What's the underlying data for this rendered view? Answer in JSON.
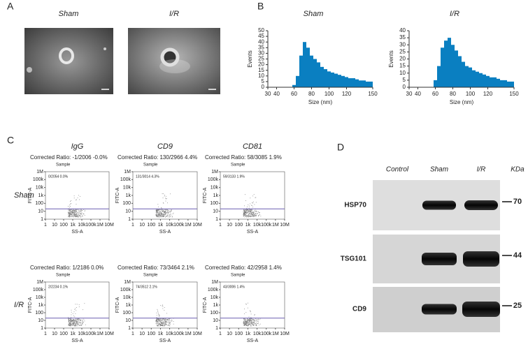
{
  "panel_a": {
    "label": "A",
    "captions": [
      "Sham",
      "I/R"
    ]
  },
  "panel_b_label": "B",
  "chart_data": [
    {
      "type": "histogram",
      "title": "Sham",
      "xlabel": "Size (nm)",
      "ylabel": "Events",
      "color": "#0a7fc1",
      "bins": [
        30,
        34,
        38,
        42,
        46,
        50,
        54,
        58,
        62,
        66,
        70,
        74,
        78,
        82,
        86,
        90,
        94,
        98,
        102,
        106,
        110,
        114,
        118,
        122,
        126,
        130,
        134,
        138,
        142,
        146,
        150
      ],
      "values": [
        0,
        0,
        0,
        0,
        0,
        0,
        0,
        2,
        10,
        28,
        40,
        35,
        28,
        25,
        22,
        18,
        16,
        14,
        13,
        12,
        11,
        10,
        9,
        8,
        8,
        7,
        6,
        6,
        5,
        5
      ],
      "xlim": [
        30,
        150
      ],
      "xticks": [
        30,
        40,
        60,
        80,
        100,
        120,
        150
      ],
      "ylim": [
        0,
        50
      ],
      "yticks": [
        0,
        5,
        10,
        15,
        20,
        25,
        30,
        35,
        40,
        45,
        50
      ]
    },
    {
      "type": "histogram",
      "title": "I/R",
      "xlabel": "Size (nm)",
      "ylabel": "Events",
      "color": "#0a7fc1",
      "bins": [
        30,
        34,
        38,
        42,
        46,
        50,
        54,
        58,
        62,
        66,
        70,
        74,
        78,
        82,
        86,
        90,
        94,
        98,
        102,
        106,
        110,
        114,
        118,
        122,
        126,
        130,
        134,
        138,
        142,
        146,
        150
      ],
      "values": [
        0,
        0,
        0,
        0,
        0,
        0,
        0,
        5,
        15,
        28,
        33,
        35,
        30,
        26,
        22,
        18,
        15,
        14,
        12,
        11,
        10,
        9,
        8,
        7,
        7,
        6,
        5,
        5,
        4,
        4
      ],
      "xlim": [
        30,
        150
      ],
      "xticks": [
        30,
        40,
        60,
        80,
        100,
        120,
        150
      ],
      "ylim": [
        0,
        40
      ],
      "yticks": [
        0,
        5,
        10,
        15,
        20,
        25,
        30,
        35,
        40
      ]
    }
  ],
  "panel_c": {
    "label": "C",
    "columns": [
      "IgG",
      "CD9",
      "CD81"
    ],
    "rows": [
      "Sham",
      "I/R"
    ],
    "xlabel": "SS-A",
    "ylabel": "FITC-A",
    "sample": "Sample",
    "gate_y": 20,
    "xlim": [
      1,
      10000000
    ],
    "ylim": [
      1,
      1000000
    ],
    "xticks": [
      1,
      10,
      100,
      {
        "value": 1000,
        "label": "1k"
      },
      {
        "value": 10000,
        "label": "10k"
      },
      {
        "value": 100000,
        "label": "100k"
      },
      {
        "value": 1000000,
        "label": "1M"
      },
      {
        "value": 10000000,
        "label": "10M"
      }
    ],
    "yticks": [
      1,
      10,
      100,
      {
        "value": 1000,
        "label": "1k"
      },
      {
        "value": 10000,
        "label": "10k"
      },
      {
        "value": 100000,
        "label": "100k"
      },
      {
        "value": 1000000,
        "label": "1M"
      }
    ],
    "plots": [
      [
        {
          "ratio": "Corrected Ratio:  -1/2006  -0.0%",
          "gate": "0/2054  0.0%"
        },
        {
          "ratio": "Corrected Ratio:  130/2966  4.4%",
          "gate": "131/3014  4.3%"
        },
        {
          "ratio": "Corrected Ratio:  58/3085  1.9%",
          "gate": "59/3133  1.9%"
        }
      ],
      [
        {
          "ratio": "Corrected Ratio:  1/2186  0.0%",
          "gate": "2/2234  0.1%"
        },
        {
          "ratio": "Corrected Ratio:  73/3464  2.1%",
          "gate": "74/3512  2.1%"
        },
        {
          "ratio": "Corrected Ratio:  42/2958  1.4%",
          "gate": "43/3006  1.4%"
        }
      ]
    ]
  },
  "panel_d": {
    "label": "D",
    "lanes": [
      "Control",
      "Sham",
      "I/R"
    ],
    "unit": "KDa",
    "rows": [
      {
        "protein": "HSP70",
        "kda": "70"
      },
      {
        "protein": "TSG101",
        "kda": "44"
      },
      {
        "protein": "CD9",
        "kda": "25"
      }
    ]
  }
}
